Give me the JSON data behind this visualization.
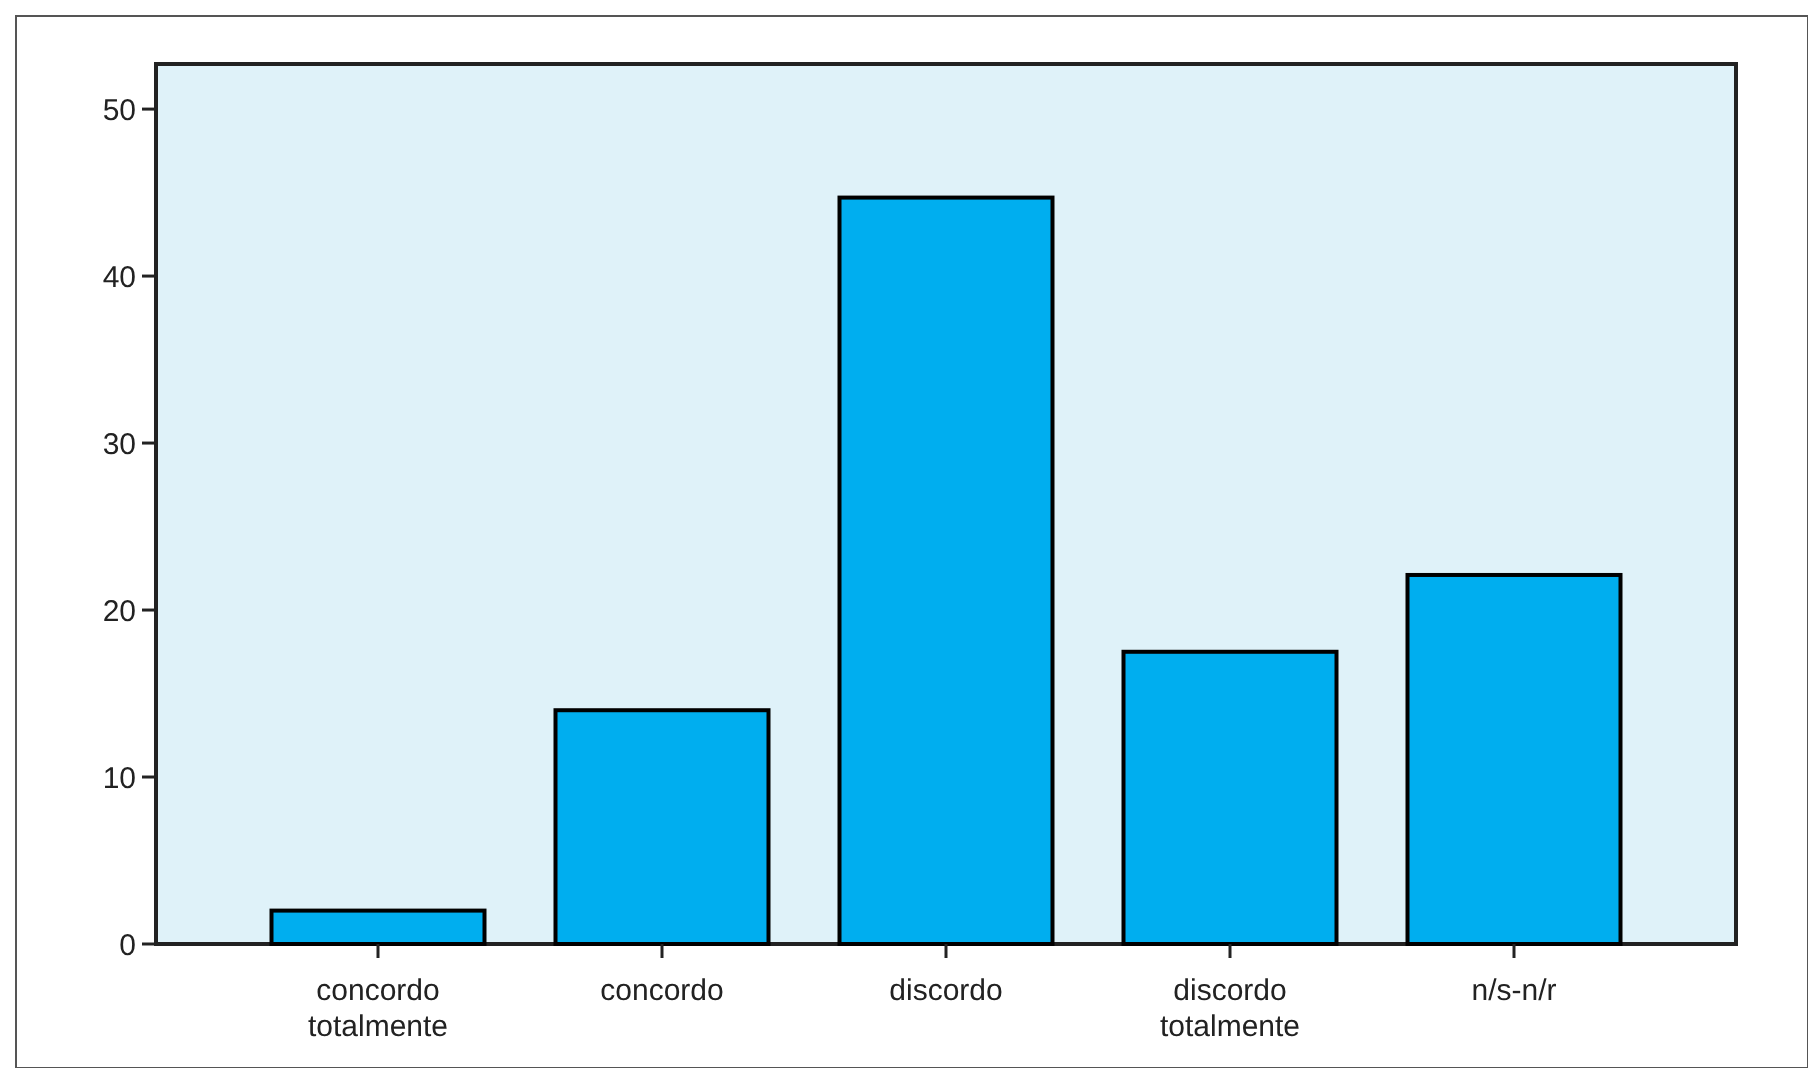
{
  "chart_data": {
    "type": "bar",
    "categories": [
      "concordo totalmente",
      "concordo",
      "discordo",
      "discordo totalmente",
      "n/s-n/r"
    ],
    "values": [
      2,
      14,
      44.7,
      17.5,
      22.1
    ],
    "color": "#00aeef",
    "ylim": [
      0,
      52.7
    ],
    "yticks": [
      0,
      10,
      20,
      30,
      40,
      50
    ],
    "grid": false
  }
}
